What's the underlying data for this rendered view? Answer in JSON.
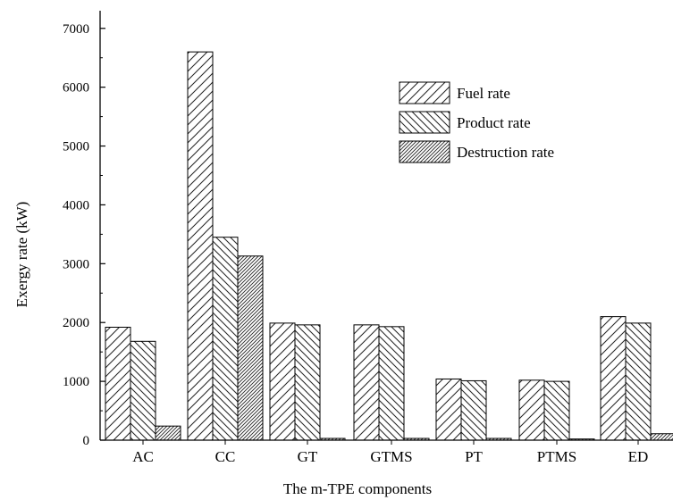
{
  "chart_data": {
    "type": "bar",
    "xlabel": "The m-TPE components",
    "ylabel": "Exergy rate (kW)",
    "categories": [
      "AC",
      "CC",
      "GT",
      "GTMS",
      "PT",
      "PTMS",
      "ED"
    ],
    "series": [
      {
        "name": "Fuel rate",
        "values": [
          1920,
          6600,
          1990,
          1960,
          1040,
          1020,
          2100
        ]
      },
      {
        "name": "Product rate",
        "values": [
          1680,
          3450,
          1960,
          1930,
          1010,
          1000,
          1990
        ]
      },
      {
        "name": "Destruction rate",
        "values": [
          240,
          3130,
          30,
          30,
          30,
          20,
          110
        ]
      }
    ],
    "ylim": [
      0,
      7300
    ],
    "yticks": [
      0,
      1000,
      2000,
      3000,
      4000,
      5000,
      6000,
      7000
    ],
    "grid": false,
    "legend_position": "top-right"
  }
}
